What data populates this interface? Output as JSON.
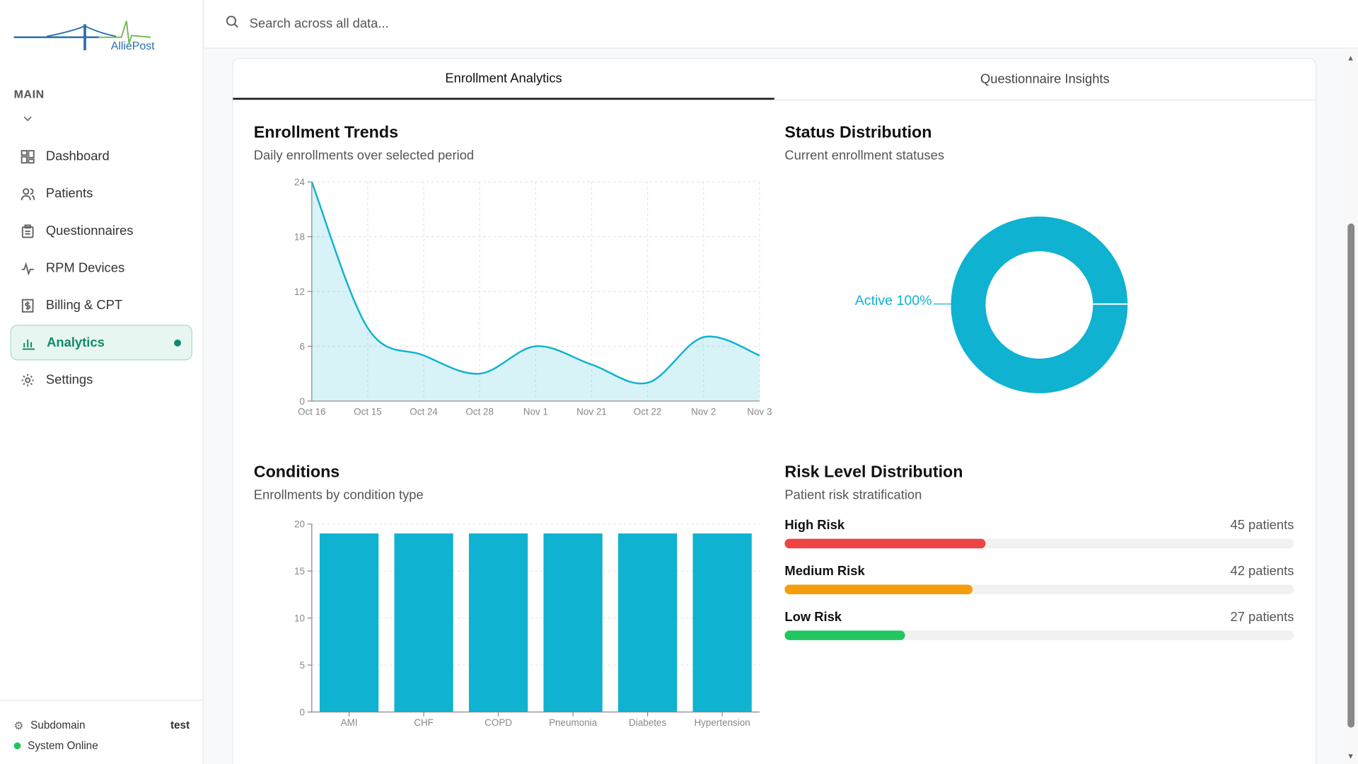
{
  "brand": {
    "name": "AlliePost"
  },
  "sidebar": {
    "section": "MAIN",
    "items": [
      {
        "label": "Dashboard",
        "icon": "dashboard-icon"
      },
      {
        "label": "Patients",
        "icon": "users-icon"
      },
      {
        "label": "Questionnaires",
        "icon": "clipboard-icon"
      },
      {
        "label": "RPM Devices",
        "icon": "activity-icon"
      },
      {
        "label": "Billing & CPT",
        "icon": "billing-icon"
      },
      {
        "label": "Analytics",
        "icon": "bar-chart-icon",
        "active": true
      },
      {
        "label": "Settings",
        "icon": "gear-icon"
      }
    ],
    "footer": {
      "subdomain_label": "Subdomain",
      "subdomain_value": "test",
      "status": "System Online"
    }
  },
  "search": {
    "placeholder": "Search across all data..."
  },
  "tabs": [
    {
      "label": "Enrollment Analytics",
      "active": true
    },
    {
      "label": "Questionnaire Insights"
    }
  ],
  "colors": {
    "accent": "#0fb2d0",
    "active_nav": "#0f8a6a",
    "high": "#ef4444",
    "medium": "#f59e0b",
    "low": "#22c55e"
  },
  "panels": {
    "trends": {
      "title": "Enrollment Trends",
      "subtitle": "Daily enrollments over selected period"
    },
    "status": {
      "title": "Status Distribution",
      "subtitle": "Current enrollment statuses"
    },
    "conditions": {
      "title": "Conditions",
      "subtitle": "Enrollments by condition type"
    },
    "risk": {
      "title": "Risk Level Distribution",
      "subtitle": "Patient risk stratification",
      "levels": [
        {
          "label": "High Risk",
          "count": 45,
          "count_text": "45 patients",
          "color": "#ef4444"
        },
        {
          "label": "Medium Risk",
          "count": 42,
          "count_text": "42 patients",
          "color": "#f59e0b"
        },
        {
          "label": "Low Risk",
          "count": 27,
          "count_text": "27 patients",
          "color": "#22c55e"
        }
      ]
    }
  },
  "chart_data": [
    {
      "type": "area",
      "categories": [
        "Oct 16",
        "Oct 15",
        "Oct 24",
        "Oct 28",
        "Nov 1",
        "Nov 21",
        "Oct 22",
        "Nov 2",
        "Nov 3"
      ],
      "values": [
        24,
        8,
        5,
        3,
        6,
        4,
        2,
        7,
        5
      ],
      "yticks": [
        0,
        6,
        12,
        18,
        24
      ],
      "ylim": [
        0,
        24
      ],
      "grid": true
    },
    {
      "type": "pie",
      "donut": true,
      "slices": [
        {
          "label": "Active 100%",
          "name": "Active",
          "value": 100
        }
      ]
    },
    {
      "type": "bar",
      "categories": [
        "AMI",
        "CHF",
        "COPD",
        "Pneumonia",
        "Diabetes",
        "Hypertension"
      ],
      "values": [
        19,
        19,
        19,
        19,
        19,
        19
      ],
      "yticks": [
        0,
        5,
        10,
        15,
        20
      ],
      "ylim": [
        0,
        20
      ],
      "grid": true
    }
  ]
}
